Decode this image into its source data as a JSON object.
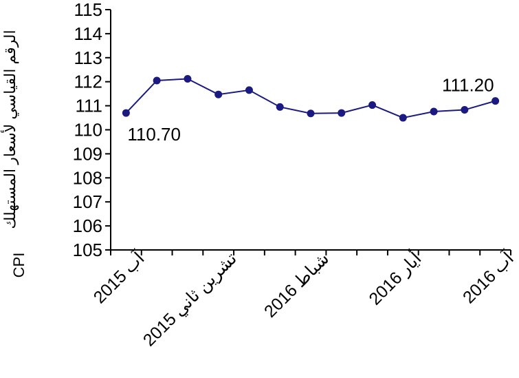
{
  "chart_data": {
    "type": "line",
    "ylabel_ar": "الرقم القياسي لأسعار المستهلك",
    "ylabel_en": "CPI",
    "ylim": [
      105,
      115
    ],
    "yticks": [
      "105",
      "106",
      "107",
      "108",
      "109",
      "110",
      "111",
      "112",
      "113",
      "114",
      "115"
    ],
    "x": [
      "آب 2015",
      "",
      "",
      "تشرين ثاني 2015",
      "",
      "",
      "شباط 2016",
      "",
      "",
      "أيار 2016",
      "",
      "",
      "آب 2016"
    ],
    "values": [
      110.7,
      112.05,
      112.12,
      111.47,
      111.65,
      110.95,
      110.68,
      110.7,
      111.03,
      110.5,
      110.76,
      110.83,
      111.2
    ],
    "xtick_labels": [
      {
        "index": 0,
        "month": "آب",
        "year": "2015"
      },
      {
        "index": 3,
        "month": "تشرين ثاني",
        "year": "2015"
      },
      {
        "index": 6,
        "month": "شباط",
        "year": "2016"
      },
      {
        "index": 9,
        "month": "أيار",
        "year": "2016"
      },
      {
        "index": 12,
        "month": "آب",
        "year": "2016"
      }
    ],
    "data_labels": [
      {
        "index": 0,
        "text": "110.70"
      },
      {
        "index": 12,
        "text": "111.20"
      }
    ],
    "series_color": "#1a1a80",
    "grid": false
  }
}
